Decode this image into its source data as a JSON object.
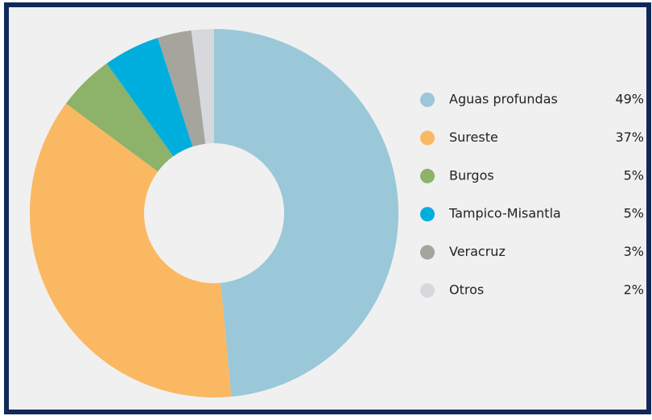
{
  "chart_data": {
    "type": "pie",
    "categories": [
      "Aguas profundas",
      "Sureste",
      "Burgos",
      "Tampico-Misantla",
      "Veracruz",
      "Otros"
    ],
    "values": [
      49,
      37,
      5,
      5,
      3,
      2
    ],
    "value_labels": [
      "49%",
      "37%",
      "5%",
      "5%",
      "3%",
      "2%"
    ],
    "colors": [
      "#9ac8d8",
      "#fbb862",
      "#8db26a",
      "#00aede",
      "#a5a59d",
      "#d7d8dc"
    ]
  }
}
